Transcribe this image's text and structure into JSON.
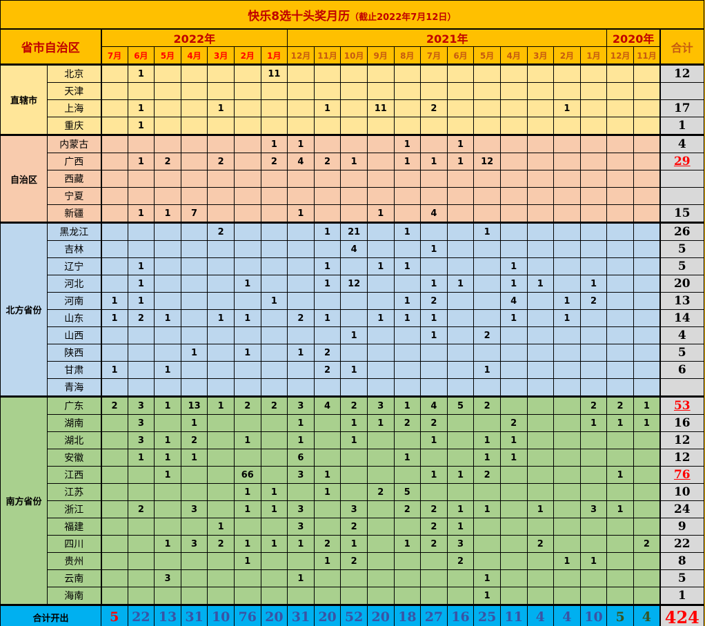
{
  "title": "快乐8选十头奖月历",
  "subtitle": "（截止2022年7月12日）",
  "header": {
    "region_label": "省市自治区",
    "total_label": "合计",
    "years": [
      {
        "label": "2022年",
        "months": [
          "7月",
          "6月",
          "5月",
          "4月",
          "3月",
          "2月",
          "1月"
        ]
      },
      {
        "label": "2021年",
        "months": [
          "12月",
          "11月",
          "10月",
          "9月",
          "8月",
          "7月",
          "6月",
          "5月",
          "4月",
          "3月",
          "2月",
          "1月"
        ]
      },
      {
        "label": "2020年",
        "months": [
          "12月",
          "11月"
        ]
      }
    ]
  },
  "colors": {
    "title_bg": "#FFC000",
    "title_text": "#C00000",
    "month_2022_text": "#FF0000",
    "month_other_text": "#C55A11",
    "total_col_bg": "#D9D9D9",
    "footer_bg": "#00B0F0",
    "highlight_text": "#FF0000"
  },
  "groups": [
    {
      "name": "直辖市",
      "bg": "#FFE699",
      "rows": [
        {
          "name": "北京",
          "values": [
            null,
            1,
            null,
            null,
            null,
            null,
            11,
            null,
            null,
            null,
            null,
            null,
            null,
            null,
            null,
            null,
            null,
            null,
            null,
            null,
            null
          ],
          "total": "12"
        },
        {
          "name": "天津",
          "values": [
            null,
            null,
            null,
            null,
            null,
            null,
            null,
            null,
            null,
            null,
            null,
            null,
            null,
            null,
            null,
            null,
            null,
            null,
            null,
            null,
            null
          ],
          "total": ""
        },
        {
          "name": "上海",
          "values": [
            null,
            1,
            null,
            null,
            1,
            null,
            null,
            null,
            1,
            null,
            11,
            null,
            2,
            null,
            null,
            null,
            null,
            1,
            null,
            null,
            null
          ],
          "total": "17"
        },
        {
          "name": "重庆",
          "values": [
            null,
            1,
            null,
            null,
            null,
            null,
            null,
            null,
            null,
            null,
            null,
            null,
            null,
            null,
            null,
            null,
            null,
            null,
            null,
            null,
            null
          ],
          "total": "1"
        }
      ]
    },
    {
      "name": "自治区",
      "bg": "#F8CBAD",
      "rows": [
        {
          "name": "内蒙古",
          "values": [
            null,
            null,
            null,
            null,
            null,
            null,
            1,
            1,
            null,
            null,
            null,
            1,
            null,
            1,
            null,
            null,
            null,
            null,
            null,
            null,
            null
          ],
          "total": "4"
        },
        {
          "name": "广西",
          "values": [
            null,
            1,
            2,
            null,
            2,
            null,
            2,
            4,
            2,
            1,
            null,
            1,
            1,
            1,
            12,
            null,
            null,
            null,
            null,
            null,
            null
          ],
          "total": "29",
          "highlight": true
        },
        {
          "name": "西藏",
          "values": [
            null,
            null,
            null,
            null,
            null,
            null,
            null,
            null,
            null,
            null,
            null,
            null,
            null,
            null,
            null,
            null,
            null,
            null,
            null,
            null,
            null
          ],
          "total": ""
        },
        {
          "name": "宁夏",
          "values": [
            null,
            null,
            null,
            null,
            null,
            null,
            null,
            null,
            null,
            null,
            null,
            null,
            null,
            null,
            null,
            null,
            null,
            null,
            null,
            null,
            null
          ],
          "total": ""
        },
        {
          "name": "新疆",
          "values": [
            null,
            1,
            1,
            7,
            null,
            null,
            null,
            1,
            null,
            null,
            1,
            null,
            4,
            null,
            null,
            null,
            null,
            null,
            null,
            null,
            null
          ],
          "total": "15"
        }
      ]
    },
    {
      "name": "北方省份",
      "bg": "#BDD7EE",
      "rows": [
        {
          "name": "黑龙江",
          "values": [
            null,
            null,
            null,
            null,
            2,
            null,
            null,
            null,
            1,
            21,
            null,
            1,
            null,
            null,
            1,
            null,
            null,
            null,
            null,
            null,
            null
          ],
          "total": "26"
        },
        {
          "name": "吉林",
          "values": [
            null,
            null,
            null,
            null,
            null,
            null,
            null,
            null,
            null,
            4,
            null,
            null,
            1,
            null,
            null,
            null,
            null,
            null,
            null,
            null,
            null
          ],
          "total": "5"
        },
        {
          "name": "辽宁",
          "values": [
            null,
            1,
            null,
            null,
            null,
            null,
            null,
            null,
            1,
            null,
            1,
            1,
            null,
            null,
            null,
            1,
            null,
            null,
            null,
            null,
            null
          ],
          "total": "5"
        },
        {
          "name": "河北",
          "values": [
            null,
            1,
            null,
            null,
            null,
            1,
            null,
            null,
            1,
            12,
            null,
            null,
            1,
            1,
            null,
            1,
            1,
            null,
            1,
            null,
            null
          ],
          "total": "20"
        },
        {
          "name": "河南",
          "values": [
            1,
            1,
            null,
            null,
            null,
            null,
            1,
            null,
            null,
            null,
            null,
            1,
            2,
            null,
            null,
            4,
            null,
            1,
            2,
            null,
            null
          ],
          "total": "13"
        },
        {
          "name": "山东",
          "values": [
            1,
            2,
            1,
            null,
            1,
            1,
            null,
            2,
            1,
            null,
            1,
            1,
            1,
            null,
            null,
            1,
            null,
            1,
            null,
            null,
            null
          ],
          "total": "14"
        },
        {
          "name": "山西",
          "values": [
            null,
            null,
            null,
            null,
            null,
            null,
            null,
            null,
            null,
            1,
            null,
            null,
            1,
            null,
            2,
            null,
            null,
            null,
            null,
            null,
            null
          ],
          "total": "4"
        },
        {
          "name": "陕西",
          "values": [
            null,
            null,
            null,
            1,
            null,
            1,
            null,
            1,
            2,
            null,
            null,
            null,
            null,
            null,
            null,
            null,
            null,
            null,
            null,
            null,
            null
          ],
          "total": "5"
        },
        {
          "name": "甘肃",
          "values": [
            1,
            null,
            1,
            null,
            null,
            null,
            null,
            null,
            2,
            1,
            null,
            null,
            null,
            null,
            1,
            null,
            null,
            null,
            null,
            null,
            null
          ],
          "total": "6"
        },
        {
          "name": "青海",
          "values": [
            null,
            null,
            null,
            null,
            null,
            null,
            null,
            null,
            null,
            null,
            null,
            null,
            null,
            null,
            null,
            null,
            null,
            null,
            null,
            null,
            null
          ],
          "total": ""
        }
      ]
    },
    {
      "name": "南方省份",
      "bg": "#A9D08E",
      "rows": [
        {
          "name": "广东",
          "values": [
            2,
            3,
            1,
            13,
            1,
            2,
            2,
            3,
            4,
            2,
            3,
            1,
            4,
            5,
            2,
            null,
            null,
            null,
            2,
            2,
            1
          ],
          "total": "53",
          "highlight": true
        },
        {
          "name": "湖南",
          "values": [
            null,
            3,
            null,
            1,
            null,
            null,
            null,
            1,
            null,
            1,
            1,
            2,
            2,
            null,
            null,
            2,
            null,
            null,
            1,
            1,
            1
          ],
          "total": "16"
        },
        {
          "name": "湖北",
          "values": [
            null,
            3,
            1,
            2,
            null,
            1,
            null,
            1,
            null,
            1,
            null,
            null,
            1,
            null,
            1,
            1,
            null,
            null,
            null,
            null,
            null
          ],
          "total": "12"
        },
        {
          "name": "安徽",
          "values": [
            null,
            1,
            1,
            1,
            null,
            null,
            null,
            6,
            null,
            null,
            null,
            1,
            null,
            null,
            1,
            1,
            null,
            null,
            null,
            null,
            null
          ],
          "total": "12"
        },
        {
          "name": "江西",
          "values": [
            null,
            null,
            1,
            null,
            null,
            66,
            null,
            3,
            1,
            null,
            null,
            null,
            1,
            1,
            2,
            null,
            null,
            null,
            null,
            1,
            null
          ],
          "total": "76",
          "highlight": true
        },
        {
          "name": "江苏",
          "values": [
            null,
            null,
            null,
            null,
            null,
            1,
            1,
            null,
            1,
            null,
            2,
            5,
            null,
            null,
            null,
            null,
            null,
            null,
            null,
            null,
            null
          ],
          "total": "10"
        },
        {
          "name": "浙江",
          "values": [
            null,
            2,
            null,
            3,
            null,
            1,
            1,
            3,
            null,
            3,
            null,
            2,
            2,
            1,
            1,
            null,
            1,
            null,
            3,
            1,
            null
          ],
          "total": "24"
        },
        {
          "name": "福建",
          "values": [
            null,
            null,
            null,
            null,
            1,
            null,
            null,
            3,
            null,
            2,
            null,
            null,
            2,
            1,
            null,
            null,
            null,
            null,
            null,
            null,
            null
          ],
          "total": "9"
        },
        {
          "name": "四川",
          "values": [
            null,
            null,
            1,
            3,
            2,
            1,
            1,
            1,
            2,
            1,
            null,
            1,
            2,
            3,
            null,
            null,
            2,
            null,
            null,
            null,
            2
          ],
          "total": "22"
        },
        {
          "name": "贵州",
          "values": [
            null,
            null,
            null,
            null,
            null,
            1,
            null,
            null,
            1,
            2,
            null,
            null,
            null,
            2,
            null,
            null,
            null,
            1,
            1,
            null,
            null
          ],
          "total": "8"
        },
        {
          "name": "云南",
          "values": [
            null,
            null,
            3,
            null,
            null,
            null,
            null,
            1,
            null,
            null,
            null,
            null,
            null,
            null,
            1,
            null,
            null,
            null,
            null,
            null,
            null
          ],
          "total": "5"
        },
        {
          "name": "海南",
          "values": [
            null,
            null,
            null,
            null,
            null,
            null,
            null,
            null,
            null,
            null,
            null,
            null,
            null,
            null,
            1,
            null,
            null,
            null,
            null,
            null,
            null
          ],
          "total": "1"
        }
      ]
    }
  ],
  "footer": {
    "label": "合计开出",
    "values": [
      "5",
      "22",
      "13",
      "31",
      "10",
      "76",
      "20",
      "31",
      "20",
      "52",
      "20",
      "18",
      "27",
      "16",
      "25",
      "11",
      "4",
      "4",
      "10",
      "5",
      "4"
    ],
    "value_colors": [
      "#FF0000",
      "#3A53A4",
      "#3A53A4",
      "#3A53A4",
      "#3A53A4",
      "#3A53A4",
      "#3A53A4",
      "#3A53A4",
      "#3A53A4",
      "#3A53A4",
      "#3A53A4",
      "#3A53A4",
      "#3A53A4",
      "#3A53A4",
      "#3A53A4",
      "#3A53A4",
      "#3A53A4",
      "#3A53A4",
      "#3A53A4",
      "#375623",
      "#375623"
    ],
    "grand_total": "424"
  }
}
